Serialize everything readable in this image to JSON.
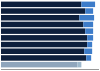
{
  "chart_data": {
    "type": "bar",
    "orientation": "horizontal",
    "stacked": true,
    "categories": [
      null,
      null,
      null,
      null,
      null,
      null,
      null,
      null,
      null,
      null
    ],
    "series": [
      {
        "colors": [
          "#0d1f3c",
          "#0d1f3c",
          "#0d1f3c",
          "#0d1f3c",
          "#0d1f3c",
          "#0d1f3c",
          "#0d1f3c",
          "#0d1f3c",
          "#0d1f3c",
          "#8fa5bc"
        ],
        "values": [
          82,
          86,
          80,
          84,
          86,
          88,
          88,
          85,
          87,
          78
        ]
      },
      {
        "colors": [
          "#3d7cc9",
          "#3d7cc9",
          "#3d7cc9",
          "#3d7cc9",
          "#3d7cc9",
          "#3d7cc9",
          "#3d7cc9",
          "#3d7cc9",
          "#3d7cc9",
          "#9eb8cc"
        ],
        "values": [
          14,
          8,
          15,
          10,
          8,
          6,
          5,
          8,
          5,
          4
        ]
      }
    ],
    "xlim": [
      0,
      100
    ],
    "tick_labels": false,
    "grid": false
  }
}
